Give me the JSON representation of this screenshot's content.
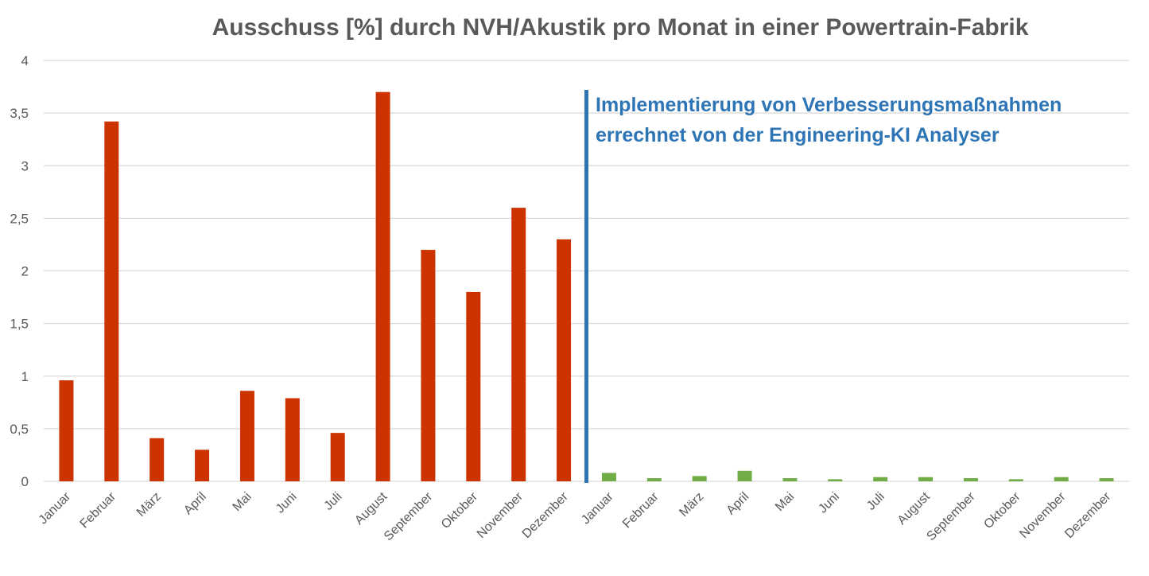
{
  "chart_data": {
    "type": "bar",
    "title": "Ausschuss [%] durch NVH/Akustik pro Monat in einer Powertrain-Fabrik",
    "xlabel": "",
    "ylabel": "",
    "ylim": [
      0,
      4
    ],
    "yticks": [
      "0",
      "0,5",
      "1",
      "1,5",
      "2",
      "2,5",
      "3",
      "3,5",
      "4"
    ],
    "grid": true,
    "categories": [
      "Januar",
      "Februar",
      "März",
      "April",
      "Mai",
      "Juni",
      "Juli",
      "August",
      "September",
      "Oktober",
      "November",
      "Dezember",
      "Januar",
      "Februar",
      "März",
      "April",
      "Mai",
      "Juni",
      "Juli",
      "August",
      "September",
      "Oktober",
      "November",
      "Dezember"
    ],
    "values": [
      0.96,
      3.42,
      0.41,
      0.3,
      0.86,
      0.79,
      0.46,
      3.7,
      2.2,
      1.8,
      2.6,
      2.3,
      0.08,
      0.03,
      0.05,
      0.1,
      0.03,
      0.02,
      0.04,
      0.04,
      0.03,
      0.02,
      0.04,
      0.03
    ],
    "bar_colors": [
      "#CC3300",
      "#CC3300",
      "#CC3300",
      "#CC3300",
      "#CC3300",
      "#CC3300",
      "#CC3300",
      "#CC3300",
      "#CC3300",
      "#CC3300",
      "#CC3300",
      "#CC3300",
      "#70AD47",
      "#70AD47",
      "#70AD47",
      "#70AD47",
      "#70AD47",
      "#70AD47",
      "#70AD47",
      "#70AD47",
      "#70AD47",
      "#70AD47",
      "#70AD47",
      "#70AD47"
    ],
    "annotation": {
      "lines": [
        "Implementierung von Verbesserungsmaßnahmen",
        "errechnet von der Engineering-KI Analyser"
      ],
      "color": "#2E75B6"
    },
    "gridline_color": "#D9D9D9",
    "axis_text_color": "#595959"
  }
}
